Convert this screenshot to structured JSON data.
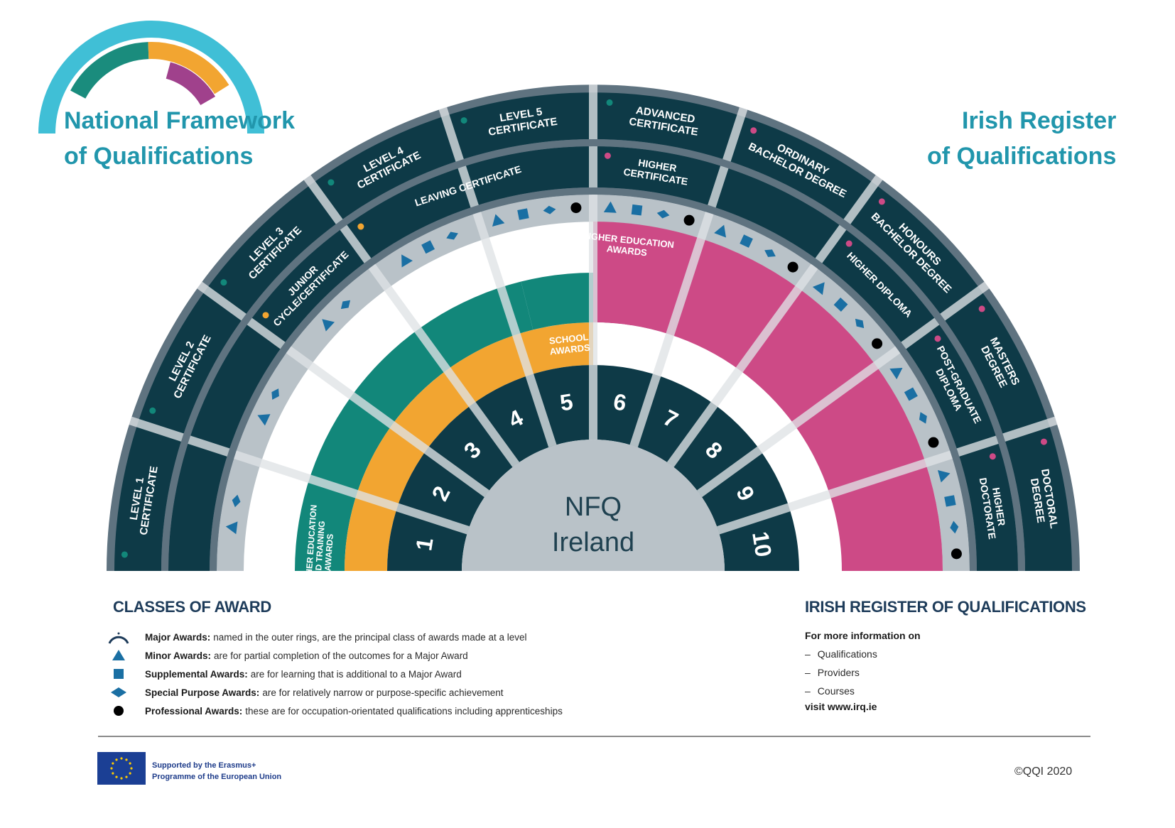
{
  "header": {
    "left_title_line1": "National Framework",
    "left_title_line2": "of Qualifications",
    "right_title_line1": "Irish Register",
    "right_title_line2": "of Qualifications"
  },
  "center": {
    "line1": "NFQ",
    "line2": "Ireland"
  },
  "levels": [
    "1",
    "2",
    "3",
    "4",
    "5",
    "6",
    "7",
    "8",
    "9",
    "10"
  ],
  "bands": {
    "further_education": [
      "FURTHER EDUCATION",
      "AND TRAINING",
      "AWARDS"
    ],
    "school": [
      "SCHOOL",
      "AWARDS"
    ],
    "higher_education": [
      "HIGHER EDUCATION",
      "AWARDS"
    ]
  },
  "major_awards_outer": [
    [
      "LEVEL 1",
      "CERTIFICATE"
    ],
    [
      "LEVEL 2",
      "CERTIFICATE"
    ],
    [
      "LEVEL 3",
      "CERTIFICATE"
    ],
    [
      "LEVEL 4",
      "CERTIFICATE"
    ],
    [
      "LEVEL 5",
      "CERTIFICATE"
    ],
    [
      "ADVANCED",
      "CERTIFICATE"
    ],
    [
      "ORDINARY",
      "BACHELOR DEGREE"
    ],
    [
      "HONOURS",
      "BACHELOR DEGREE"
    ],
    [
      "MASTERS",
      "DEGREE"
    ],
    [
      "DOCTORAL",
      "DEGREE"
    ]
  ],
  "major_awards_inner": {
    "junior": [
      "JUNIOR",
      "CYCLE/CERTIFICATE"
    ],
    "leaving": [
      "LEAVING CERTIFICATE"
    ],
    "higher_certificate": [
      "HIGHER",
      "CERTIFICATE"
    ],
    "higher_diploma": [
      "HIGHER DIPLOMA"
    ],
    "post_graduate": [
      "POST-GRADUATE",
      "DIPLOMA"
    ],
    "higher_doctorate": [
      "HIGHER",
      "DOCTORATE"
    ]
  },
  "classes_of_award": {
    "title": "CLASSES OF AWARD",
    "items": [
      {
        "icon": "arc-icon",
        "name": "Major Awards:",
        "desc": "named in the outer rings, are the principal class of awards made at a level"
      },
      {
        "icon": "triangle-icon",
        "name": "Minor Awards:",
        "desc": "are for partial completion of the outcomes for a Major Award"
      },
      {
        "icon": "square-icon",
        "name": "Supplemental Awards:",
        "desc": "are for learning that is additional to a Major Award"
      },
      {
        "icon": "diamond-icon",
        "name": "Special Purpose Awards:",
        "desc": "are for relatively narrow or purpose-specific achievement"
      },
      {
        "icon": "circle-icon",
        "name": "Professional Awards:",
        "desc": "these are for occupation-orientated qualifications including apprenticeships"
      }
    ]
  },
  "irq_info": {
    "title": "IRISH REGISTER OF QUALIFICATIONS",
    "intro": "For more information on",
    "items": [
      "Qualifications",
      "Providers",
      "Courses"
    ],
    "bullet": "–",
    "visit": "visit www.irq.ie"
  },
  "footer": {
    "erasmus_line1": "Supported by the Erasmus+",
    "erasmus_line2": "Programme of the European Union",
    "copyright": "©QQI 2020"
  },
  "colors": {
    "navy": "#0e3a47",
    "ring_border": "#5f7380",
    "light_ring": "#b9c2c8",
    "teal": "#12877a",
    "orange": "#f2a531",
    "pink": "#cd4a86",
    "header_blue": "#2196ac",
    "logo_cyan": "#40bfd6",
    "logo_teal": "#1a8c7d",
    "logo_purple": "#a0418c"
  }
}
